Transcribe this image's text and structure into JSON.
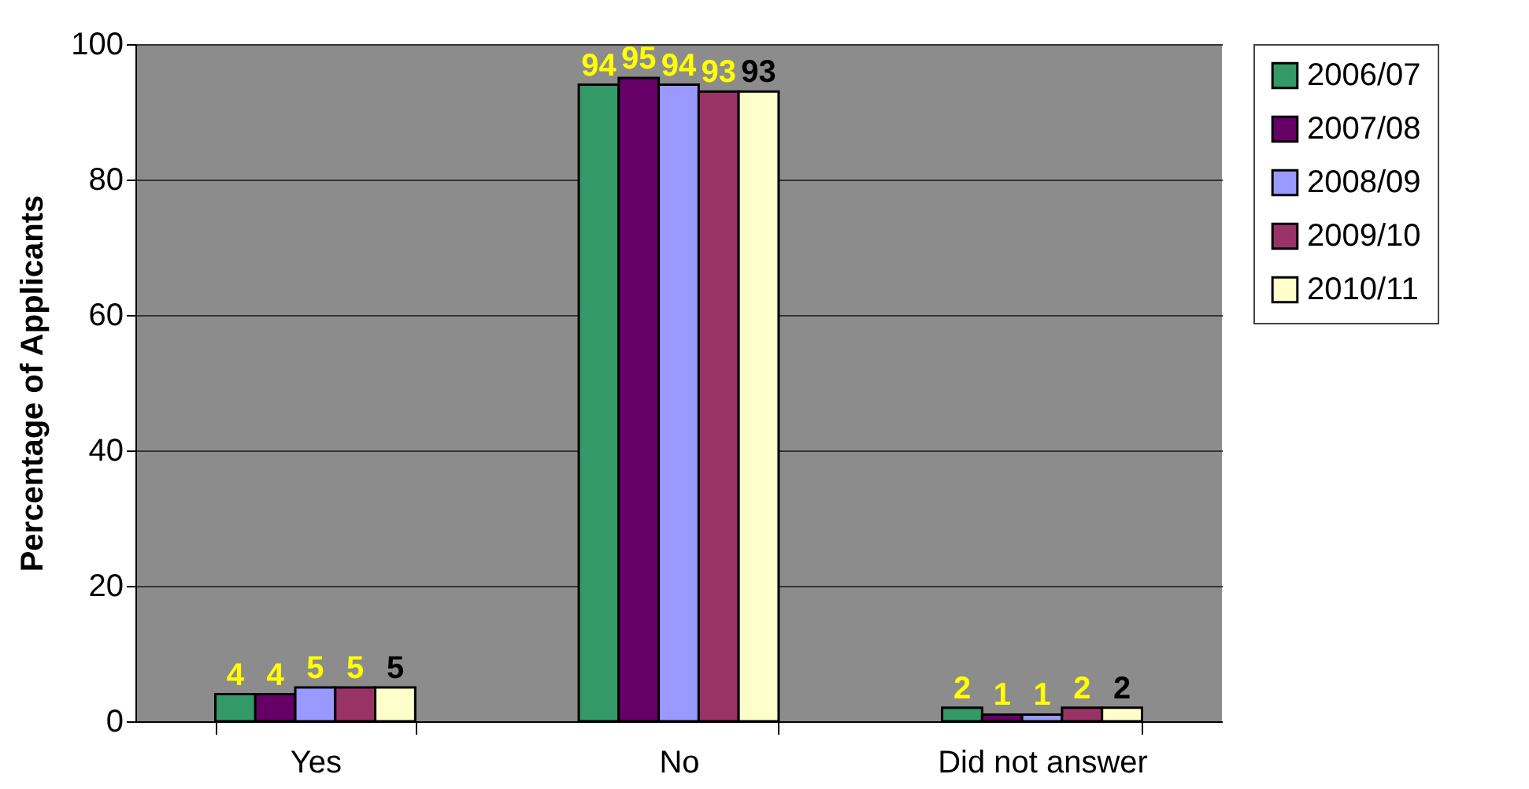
{
  "chart_data": {
    "type": "bar",
    "ylabel": "Percentage of Applicants",
    "categories": [
      "Yes",
      "No",
      "Did not answer"
    ],
    "series": [
      {
        "name": "2006/07",
        "color": "#339966",
        "values": [
          4,
          94,
          2
        ]
      },
      {
        "name": "2007/08",
        "color": "#660066",
        "values": [
          4,
          95,
          1
        ]
      },
      {
        "name": "2008/09",
        "color": "#9999ff",
        "values": [
          5,
          94,
          1
        ]
      },
      {
        "name": "2009/10",
        "color": "#993366",
        "values": [
          5,
          93,
          2
        ]
      },
      {
        "name": "2010/11",
        "color": "#ffffcc",
        "values": [
          5,
          93,
          2
        ]
      }
    ],
    "ylim": [
      0,
      100
    ],
    "yticks": [
      0,
      20,
      40,
      60,
      80,
      100
    ],
    "grid": "y",
    "legend": "right",
    "data_labels": true
  }
}
